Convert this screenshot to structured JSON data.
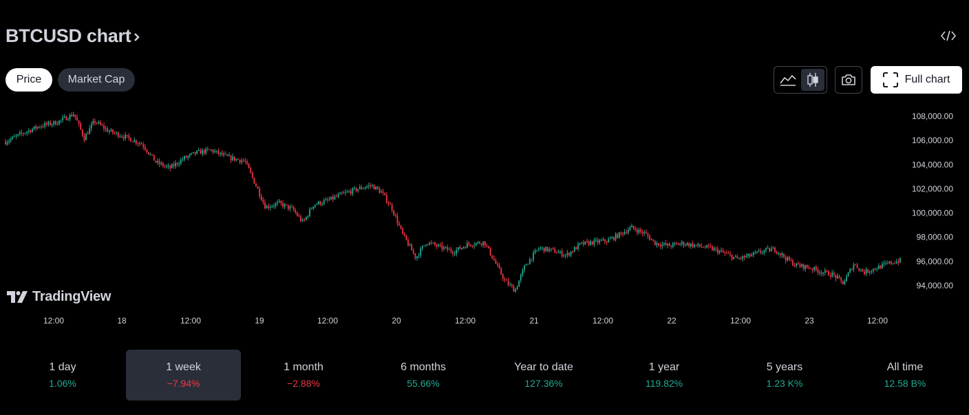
{
  "header": {
    "title": "BTCUSD chart",
    "embed_icon": "code-icon"
  },
  "tabs": [
    {
      "label": "Price",
      "active": true
    },
    {
      "label": "Market Cap",
      "active": false
    }
  ],
  "toolbar": {
    "area_style_icon": "area-chart-icon",
    "candle_style_icon": "candlestick-icon",
    "active_style": "candles",
    "snapshot_icon": "camera-icon",
    "full_chart_label": "Full chart",
    "full_chart_icon": "expand-icon"
  },
  "branding": {
    "logo_text": "TradingView"
  },
  "colors": {
    "up": "#22ab94",
    "down": "#f23645",
    "background": "#000000",
    "text": "#d1d4dc"
  },
  "chart_data": {
    "type": "candlestick",
    "symbol": "BTCUSD",
    "interval": "1 week range (≈30-minute candles)",
    "y_ticks": [
      "108,000.00",
      "106,000.00",
      "104,000.00",
      "102,000.00",
      "100,000.00",
      "98,000.00",
      "96,000.00",
      "94,000.00"
    ],
    "ylim": [
      93200,
      108600
    ],
    "x_ticks": [
      "12:00",
      "18",
      "12:00",
      "19",
      "12:00",
      "20",
      "12:00",
      "21",
      "12:00",
      "22",
      "12:00",
      "23",
      "12:00"
    ],
    "grid": false,
    "path_points": [
      [
        0,
        105900
      ],
      [
        0.5,
        106600
      ],
      [
        1.0,
        107200
      ],
      [
        1.5,
        107500
      ],
      [
        2.0,
        108200
      ],
      [
        2.3,
        106200
      ],
      [
        2.6,
        107600
      ],
      [
        3.0,
        106800
      ],
      [
        3.5,
        106300
      ],
      [
        4.0,
        105700
      ],
      [
        4.4,
        104200
      ],
      [
        4.8,
        103700
      ],
      [
        5.2,
        104500
      ],
      [
        5.6,
        105000
      ],
      [
        6.0,
        105200
      ],
      [
        6.5,
        104600
      ],
      [
        7.0,
        104300
      ],
      [
        7.4,
        101800
      ],
      [
        7.6,
        100500
      ],
      [
        8.0,
        100800
      ],
      [
        8.4,
        100300
      ],
      [
        8.7,
        99200
      ],
      [
        9.0,
        100700
      ],
      [
        9.4,
        101000
      ],
      [
        9.8,
        101500
      ],
      [
        10.3,
        102000
      ],
      [
        10.7,
        102300
      ],
      [
        11.0,
        101700
      ],
      [
        11.3,
        100400
      ],
      [
        11.6,
        98300
      ],
      [
        12.0,
        96300
      ],
      [
        12.3,
        97600
      ],
      [
        12.7,
        97200
      ],
      [
        13.1,
        96800
      ],
      [
        13.5,
        97400
      ],
      [
        14.0,
        97600
      ],
      [
        14.3,
        96000
      ],
      [
        14.6,
        94400
      ],
      [
        14.9,
        93600
      ],
      [
        15.2,
        95700
      ],
      [
        15.6,
        97100
      ],
      [
        16.0,
        96900
      ],
      [
        16.4,
        96500
      ],
      [
        16.8,
        97400
      ],
      [
        17.2,
        97600
      ],
      [
        17.6,
        97700
      ],
      [
        18.0,
        98300
      ],
      [
        18.3,
        98800
      ],
      [
        18.7,
        98300
      ],
      [
        19.0,
        97500
      ],
      [
        19.4,
        97300
      ],
      [
        19.8,
        97500
      ],
      [
        20.2,
        97300
      ],
      [
        20.6,
        97100
      ],
      [
        21.0,
        96700
      ],
      [
        21.4,
        96200
      ],
      [
        21.8,
        96500
      ],
      [
        22.2,
        96900
      ],
      [
        22.5,
        97000
      ],
      [
        22.8,
        96300
      ],
      [
        23.1,
        95700
      ],
      [
        23.5,
        95500
      ],
      [
        23.9,
        95100
      ],
      [
        24.2,
        94900
      ],
      [
        24.5,
        94200
      ],
      [
        24.8,
        95800
      ],
      [
        25.1,
        95100
      ],
      [
        25.5,
        95500
      ],
      [
        25.9,
        95900
      ],
      [
        26.2,
        96100
      ]
    ]
  },
  "periods": [
    {
      "label": "1 day",
      "value": "1.06%",
      "trend": "up",
      "active": false
    },
    {
      "label": "1 week",
      "value": "−7.94%",
      "trend": "down",
      "active": true
    },
    {
      "label": "1 month",
      "value": "−2.88%",
      "trend": "down",
      "active": false
    },
    {
      "label": "6 months",
      "value": "55.66%",
      "trend": "up",
      "active": false
    },
    {
      "label": "Year to date",
      "value": "127.36%",
      "trend": "up",
      "active": false
    },
    {
      "label": "1 year",
      "value": "119.82%",
      "trend": "up",
      "active": false
    },
    {
      "label": "5 years",
      "value": "1.23 K%",
      "trend": "up",
      "active": false
    },
    {
      "label": "All time",
      "value": "12.58 B%",
      "trend": "up",
      "active": false
    }
  ]
}
